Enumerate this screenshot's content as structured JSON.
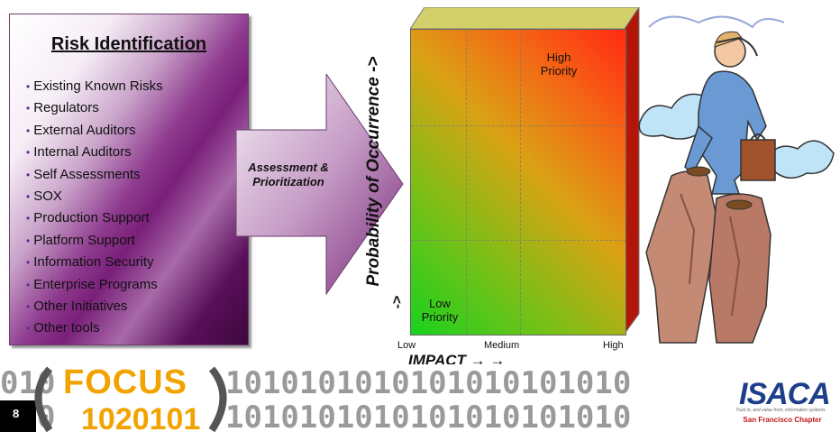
{
  "risk_box": {
    "title": "Risk Identification",
    "items": [
      "Existing Known Risks",
      "Regulators",
      "External Auditors",
      "Internal Auditors",
      "Self Assessments",
      "SOX",
      "Production Support",
      "Platform Support",
      "Information Security",
      "Enterprise Programs",
      "Other Initiatives",
      "Other tools"
    ]
  },
  "arrow": {
    "label": "Assessment & Prioritization"
  },
  "matrix": {
    "y_axis_label": "Probability of Occurrence ->",
    "x_axis_label": "IMPACT → →",
    "low_arrow": "->",
    "x_ticks": [
      "Low",
      "Medium",
      "High"
    ],
    "high_priority_label": "High\nPriority",
    "low_priority_label": "Low\nPriority",
    "gradient_colors": [
      "#19d21e",
      "#ff2a12"
    ]
  },
  "footer": {
    "page_number": "8",
    "conference_word": "FOCUS",
    "binary_pattern": "010 1010101010101010101010",
    "brand": "ISACA",
    "brand_tagline": "Trust in, and value from, information systems",
    "brand_chapter": "San Francisco Chapter"
  }
}
